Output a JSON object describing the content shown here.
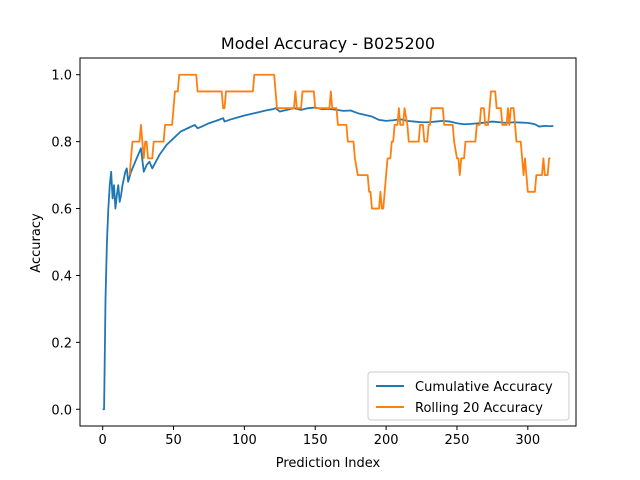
{
  "chart_data": {
    "type": "line",
    "title": "Model Accuracy - B025200",
    "xlabel": "Prediction Index",
    "ylabel": "Accuracy",
    "xlim": [
      -16,
      334
    ],
    "ylim": [
      -0.05,
      1.05
    ],
    "xticks": [
      0,
      50,
      100,
      150,
      200,
      250,
      300
    ],
    "yticks": [
      0.0,
      0.2,
      0.4,
      0.6,
      0.8,
      1.0
    ],
    "xtick_labels": [
      "0",
      "50",
      "100",
      "150",
      "200",
      "250",
      "300"
    ],
    "ytick_labels": [
      "0.0",
      "0.2",
      "0.4",
      "0.6",
      "0.8",
      "1.0"
    ],
    "grid": false,
    "legend_position": "lower-right",
    "series": [
      {
        "name": "Cumulative Accuracy",
        "color": "#1f77b4",
        "points": [
          [
            0,
            0
          ],
          [
            1,
            0
          ],
          [
            2,
            0.33
          ],
          [
            3,
            0.5
          ],
          [
            4,
            0.6
          ],
          [
            5,
            0.67
          ],
          [
            6,
            0.71
          ],
          [
            7,
            0.63
          ],
          [
            8,
            0.67
          ],
          [
            9,
            0.6
          ],
          [
            10,
            0.64
          ],
          [
            11,
            0.67
          ],
          [
            12,
            0.62
          ],
          [
            13,
            0.64
          ],
          [
            14,
            0.67
          ],
          [
            15,
            0.69
          ],
          [
            16,
            0.71
          ],
          [
            17,
            0.72
          ],
          [
            18,
            0.68
          ],
          [
            20,
            0.71
          ],
          [
            25,
            0.76
          ],
          [
            27,
            0.78
          ],
          [
            29,
            0.71
          ],
          [
            31,
            0.73
          ],
          [
            33,
            0.74
          ],
          [
            35,
            0.72
          ],
          [
            40,
            0.76
          ],
          [
            45,
            0.79
          ],
          [
            50,
            0.81
          ],
          [
            55,
            0.83
          ],
          [
            60,
            0.84
          ],
          [
            65,
            0.85
          ],
          [
            67,
            0.84
          ],
          [
            70,
            0.845
          ],
          [
            75,
            0.855
          ],
          [
            80,
            0.862
          ],
          [
            85,
            0.87
          ],
          [
            86,
            0.86
          ],
          [
            90,
            0.866
          ],
          [
            95,
            0.872
          ],
          [
            100,
            0.878
          ],
          [
            105,
            0.883
          ],
          [
            110,
            0.888
          ],
          [
            115,
            0.893
          ],
          [
            120,
            0.897
          ],
          [
            122,
            0.9
          ],
          [
            125,
            0.89
          ],
          [
            130,
            0.895
          ],
          [
            135,
            0.9
          ],
          [
            140,
            0.895
          ],
          [
            145,
            0.9
          ],
          [
            150,
            0.902
          ],
          [
            155,
            0.897
          ],
          [
            160,
            0.898
          ],
          [
            165,
            0.895
          ],
          [
            170,
            0.892
          ],
          [
            175,
            0.893
          ],
          [
            180,
            0.885
          ],
          [
            185,
            0.88
          ],
          [
            190,
            0.875
          ],
          [
            195,
            0.865
          ],
          [
            200,
            0.862
          ],
          [
            205,
            0.864
          ],
          [
            210,
            0.867
          ],
          [
            212,
            0.865
          ],
          [
            215,
            0.862
          ],
          [
            220,
            0.86
          ],
          [
            225,
            0.858
          ],
          [
            230,
            0.858
          ],
          [
            235,
            0.86
          ],
          [
            240,
            0.862
          ],
          [
            245,
            0.86
          ],
          [
            250,
            0.855
          ],
          [
            255,
            0.852
          ],
          [
            260,
            0.853
          ],
          [
            265,
            0.855
          ],
          [
            270,
            0.857
          ],
          [
            275,
            0.86
          ],
          [
            280,
            0.858
          ],
          [
            285,
            0.856
          ],
          [
            290,
            0.858
          ],
          [
            295,
            0.857
          ],
          [
            300,
            0.856
          ],
          [
            305,
            0.852
          ],
          [
            308,
            0.845
          ],
          [
            312,
            0.847
          ],
          [
            316,
            0.846
          ],
          [
            318,
            0.847
          ]
        ]
      },
      {
        "name": "Rolling 20 Accuracy",
        "color": "#ff7f0e",
        "points": [
          [
            19,
            0.7
          ],
          [
            20,
            0.75
          ],
          [
            21,
            0.8
          ],
          [
            26,
            0.8
          ],
          [
            27,
            0.85
          ],
          [
            28,
            0.8
          ],
          [
            29,
            0.75
          ],
          [
            30,
            0.8
          ],
          [
            31,
            0.8
          ],
          [
            32,
            0.75
          ],
          [
            35,
            0.75
          ],
          [
            36,
            0.8
          ],
          [
            43,
            0.8
          ],
          [
            44,
            0.85
          ],
          [
            49,
            0.85
          ],
          [
            50,
            0.9
          ],
          [
            51,
            0.95
          ],
          [
            53,
            0.95
          ],
          [
            54,
            1.0
          ],
          [
            66,
            1.0
          ],
          [
            67,
            0.95
          ],
          [
            84,
            0.95
          ],
          [
            85,
            0.9
          ],
          [
            86,
            0.9
          ],
          [
            87,
            0.95
          ],
          [
            106,
            0.95
          ],
          [
            107,
            1.0
          ],
          [
            121,
            1.0
          ],
          [
            122,
            0.95
          ],
          [
            123,
            0.9
          ],
          [
            135,
            0.9
          ],
          [
            136,
            0.95
          ],
          [
            137,
            0.9
          ],
          [
            140,
            0.9
          ],
          [
            141,
            0.95
          ],
          [
            149,
            0.95
          ],
          [
            150,
            0.9
          ],
          [
            160,
            0.9
          ],
          [
            161,
            0.95
          ],
          [
            162,
            0.9
          ],
          [
            165,
            0.9
          ],
          [
            166,
            0.85
          ],
          [
            172,
            0.85
          ],
          [
            173,
            0.8
          ],
          [
            177,
            0.8
          ],
          [
            178,
            0.75
          ],
          [
            180,
            0.7
          ],
          [
            187,
            0.7
          ],
          [
            188,
            0.65
          ],
          [
            189,
            0.65
          ],
          [
            190,
            0.6
          ],
          [
            195,
            0.6
          ],
          [
            196,
            0.65
          ],
          [
            197,
            0.6
          ],
          [
            198,
            0.6
          ],
          [
            199,
            0.65
          ],
          [
            200,
            0.7
          ],
          [
            201,
            0.75
          ],
          [
            203,
            0.75
          ],
          [
            204,
            0.8
          ],
          [
            205,
            0.8
          ],
          [
            206,
            0.85
          ],
          [
            208,
            0.85
          ],
          [
            209,
            0.9
          ],
          [
            210,
            0.85
          ],
          [
            212,
            0.85
          ],
          [
            213,
            0.9
          ],
          [
            215,
            0.85
          ],
          [
            216,
            0.8
          ],
          [
            223,
            0.8
          ],
          [
            224,
            0.85
          ],
          [
            226,
            0.85
          ],
          [
            227,
            0.8
          ],
          [
            229,
            0.8
          ],
          [
            230,
            0.85
          ],
          [
            231,
            0.85
          ],
          [
            232,
            0.9
          ],
          [
            240,
            0.9
          ],
          [
            241,
            0.85
          ],
          [
            247,
            0.85
          ],
          [
            248,
            0.8
          ],
          [
            250,
            0.75
          ],
          [
            251,
            0.75
          ],
          [
            252,
            0.7
          ],
          [
            253,
            0.75
          ],
          [
            255,
            0.75
          ],
          [
            256,
            0.8
          ],
          [
            263,
            0.8
          ],
          [
            264,
            0.85
          ],
          [
            266,
            0.85
          ],
          [
            267,
            0.9
          ],
          [
            269,
            0.9
          ],
          [
            270,
            0.85
          ],
          [
            272,
            0.85
          ],
          [
            273,
            0.9
          ],
          [
            274,
            0.95
          ],
          [
            277,
            0.95
          ],
          [
            278,
            0.9
          ],
          [
            281,
            0.9
          ],
          [
            282,
            0.85
          ],
          [
            285,
            0.85
          ],
          [
            286,
            0.9
          ],
          [
            287,
            0.85
          ],
          [
            288,
            0.9
          ],
          [
            290,
            0.9
          ],
          [
            291,
            0.85
          ],
          [
            292,
            0.8
          ],
          [
            295,
            0.8
          ],
          [
            296,
            0.75
          ],
          [
            297,
            0.7
          ],
          [
            298,
            0.75
          ],
          [
            299,
            0.7
          ],
          [
            300,
            0.65
          ],
          [
            305,
            0.65
          ],
          [
            306,
            0.7
          ],
          [
            310,
            0.7
          ],
          [
            311,
            0.75
          ],
          [
            312,
            0.7
          ],
          [
            314,
            0.7
          ],
          [
            315,
            0.75
          ],
          [
            316,
            0.75
          ]
        ]
      }
    ]
  }
}
